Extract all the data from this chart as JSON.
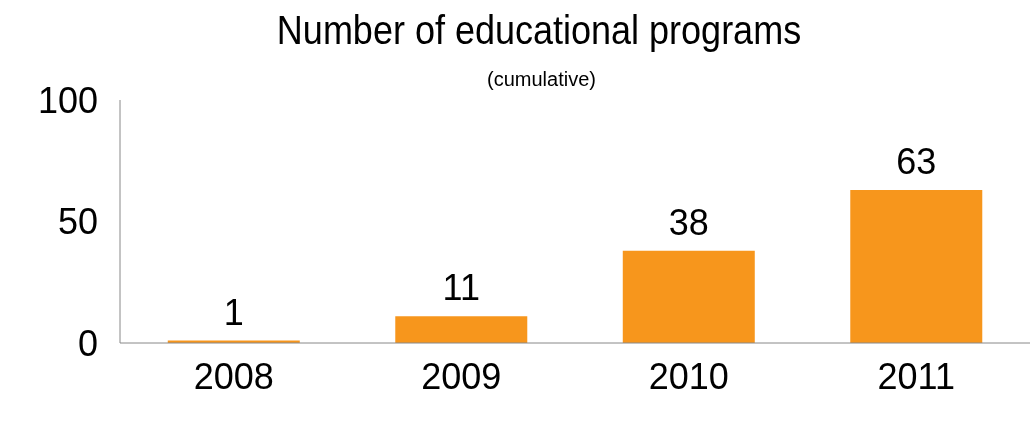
{
  "chart_data": {
    "type": "bar",
    "title": "Number of educational programs",
    "subtitle": "(cumulative)",
    "categories": [
      "2008",
      "2009",
      "2010",
      "2011"
    ],
    "values": [
      1,
      11,
      38,
      63
    ],
    "color": "#f7961c",
    "ylim": [
      0,
      100
    ],
    "yticks": [
      0,
      50,
      100
    ],
    "grid": false,
    "data_labels": true
  }
}
